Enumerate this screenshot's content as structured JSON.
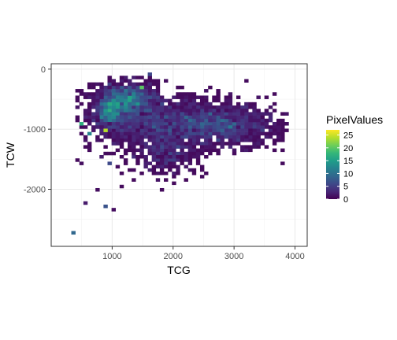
{
  "chart_data": {
    "type": "heatmap",
    "xlabel": "TCG",
    "ylabel": "TCW",
    "xlim": [
      0,
      4200
    ],
    "ylim": [
      -2950,
      90
    ],
    "x_ticks": [
      1000,
      2000,
      3000,
      4000
    ],
    "y_ticks": [
      0,
      -1000,
      -2000
    ],
    "x_tick_labels": [
      "1000",
      "2000",
      "3000",
      "4000"
    ],
    "y_tick_labels": [
      "0",
      "-1000",
      "-2000"
    ],
    "grid": true,
    "legend": {
      "title": "PixelValues",
      "position": "right",
      "range": [
        0,
        27
      ],
      "breaks": [
        25,
        20,
        15,
        10,
        5,
        0
      ],
      "break_labels": [
        "25",
        "20",
        "15",
        "10",
        "5",
        "0"
      ]
    },
    "colormap": [
      "#440154",
      "#482878",
      "#3e4989",
      "#31688e",
      "#26828e",
      "#1f9e89",
      "#35b779",
      "#6ece58",
      "#b5de2b",
      "#fde725"
    ],
    "bin_width": [
      66,
      55
    ],
    "clusters": [
      {
        "x": 2000,
        "y": -900,
        "sx": 700,
        "sy": 220,
        "count": 1700
      },
      {
        "x": 2950,
        "y": -950,
        "sx": 380,
        "sy": 160,
        "count": 600
      },
      {
        "x": 1900,
        "y": -1400,
        "sx": 320,
        "sy": 180,
        "count": 350
      },
      {
        "x": 1250,
        "y": -500,
        "sx": 260,
        "sy": 140,
        "count": 950
      },
      {
        "x": 960,
        "y": -720,
        "sx": 140,
        "sy": 150,
        "count": 520
      }
    ],
    "extra_points": [
      {
        "x": 330,
        "y": -2740,
        "value": 9
      },
      {
        "x": 540,
        "y": -2220,
        "value": 2
      },
      {
        "x": 900,
        "y": -2290,
        "value": 7
      },
      {
        "x": 1040,
        "y": -2330,
        "value": 1
      },
      {
        "x": 760,
        "y": -2030,
        "value": 1
      },
      {
        "x": 520,
        "y": -1550,
        "value": 1
      },
      {
        "x": 600,
        "y": -1100,
        "value": 12
      },
      {
        "x": 520,
        "y": -930,
        "value": 17
      },
      {
        "x": 880,
        "y": -1030,
        "value": 24
      },
      {
        "x": 1480,
        "y": -280,
        "value": 20
      },
      {
        "x": 1590,
        "y": -80,
        "value": 6
      },
      {
        "x": 1890,
        "y": -170,
        "value": 1
      },
      {
        "x": 3880,
        "y": -920,
        "value": 1
      },
      {
        "x": 3560,
        "y": -830,
        "value": 1
      },
      {
        "x": 3330,
        "y": -1110,
        "value": 1
      },
      {
        "x": 960,
        "y": -1550,
        "value": 6
      },
      {
        "x": 850,
        "y": -1450,
        "value": 2
      }
    ]
  }
}
